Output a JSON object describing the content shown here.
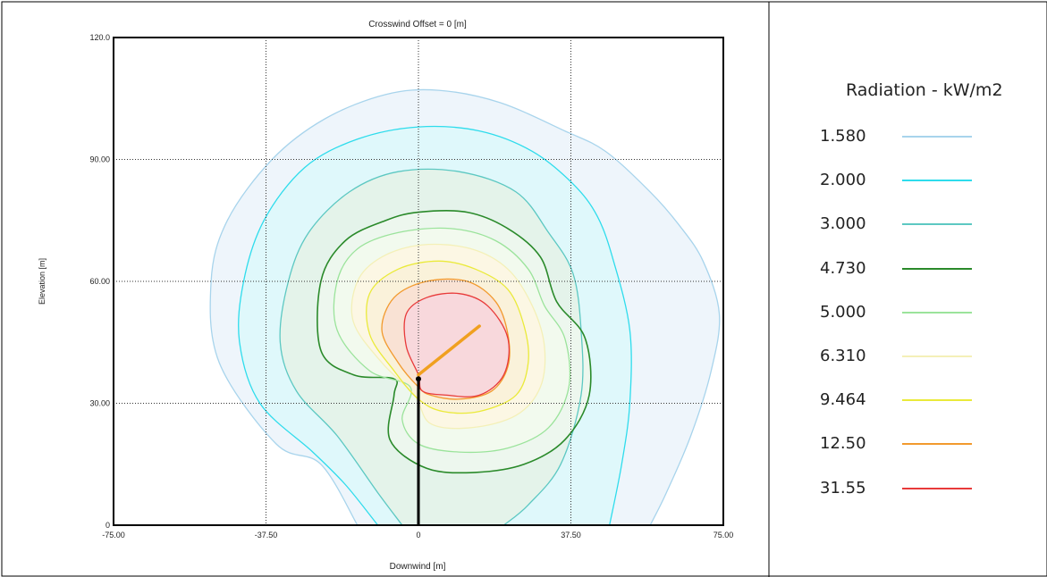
{
  "chart_data": {
    "type": "contour",
    "title": "Crosswind Offset = 0 [m]",
    "xlabel": "Downwind [m]",
    "ylabel": "Elevation [m]",
    "xlim": [
      -75,
      75
    ],
    "ylim": [
      0,
      120
    ],
    "x_ticks": [
      -75,
      -37.5,
      0,
      37.5,
      75
    ],
    "x_tick_labels": [
      "-75.00",
      "-37.50",
      "0",
      "37.50",
      "75.00"
    ],
    "y_ticks": [
      0,
      30,
      60,
      90,
      120
    ],
    "y_tick_labels": [
      "0",
      "30.00",
      "60.00",
      "90.00",
      "120.0"
    ],
    "grid": true,
    "legend_title": "Radiation - kW/m2",
    "levels": [
      {
        "label": "1.580",
        "value": 1.58,
        "color": "#a8d4ec",
        "fill": "#eef5fb",
        "points": [
          [
            -15,
            0
          ],
          [
            -24,
            15
          ],
          [
            -35,
            20
          ],
          [
            -49,
            40
          ],
          [
            -51,
            60
          ],
          [
            -47,
            75
          ],
          [
            -36,
            90
          ],
          [
            -23,
            100
          ],
          [
            -8,
            106
          ],
          [
            5,
            107
          ],
          [
            20,
            104
          ],
          [
            36,
            97
          ],
          [
            46,
            92
          ],
          [
            57,
            82
          ],
          [
            64,
            74
          ],
          [
            70,
            65
          ],
          [
            74,
            52
          ],
          [
            72,
            38
          ],
          [
            67,
            22
          ],
          [
            61,
            8
          ],
          [
            57,
            0
          ]
        ]
      },
      {
        "label": "2.000",
        "value": 2.0,
        "color": "#2edcec",
        "fill": "#dff8fb",
        "points": [
          [
            -10,
            0
          ],
          [
            -18,
            10
          ],
          [
            -26,
            18
          ],
          [
            -39,
            30
          ],
          [
            -44,
            45
          ],
          [
            -43,
            60
          ],
          [
            -38,
            75
          ],
          [
            -28,
            88
          ],
          [
            -15,
            95
          ],
          [
            0,
            98
          ],
          [
            15,
            97
          ],
          [
            28,
            92
          ],
          [
            38,
            84
          ],
          [
            44,
            76
          ],
          [
            48,
            65
          ],
          [
            52,
            48
          ],
          [
            52,
            30
          ],
          [
            50,
            15
          ],
          [
            47,
            0
          ]
        ]
      },
      {
        "label": "3.000",
        "value": 3.0,
        "color": "#5cc8c2",
        "fill": "#e4f3ea",
        "points": [
          [
            -4,
            0
          ],
          [
            -10,
            8
          ],
          [
            -20,
            22
          ],
          [
            -30,
            33
          ],
          [
            -34,
            45
          ],
          [
            -32,
            60
          ],
          [
            -27,
            72
          ],
          [
            -17,
            82
          ],
          [
            -5,
            87
          ],
          [
            10,
            87
          ],
          [
            24,
            82
          ],
          [
            32,
            72
          ],
          [
            38,
            62
          ],
          [
            40,
            48
          ],
          [
            40,
            32
          ],
          [
            35,
            15
          ],
          [
            27,
            5
          ],
          [
            21,
            0
          ]
        ]
      },
      {
        "label": "4.730",
        "value": 4.73,
        "color": "#2a8a2a",
        "fill": "#edf7ee",
        "points": [
          [
            -6,
            36
          ],
          [
            -16,
            37
          ],
          [
            -24,
            43
          ],
          [
            -24,
            60
          ],
          [
            -18,
            70
          ],
          [
            -8,
            75
          ],
          [
            0,
            77
          ],
          [
            12,
            77
          ],
          [
            22,
            73
          ],
          [
            30,
            66
          ],
          [
            34,
            55
          ],
          [
            41,
            46
          ],
          [
            42,
            32
          ],
          [
            36,
            21
          ],
          [
            26,
            15
          ],
          [
            14,
            13
          ],
          [
            2,
            14
          ],
          [
            -7,
            21
          ],
          [
            -6,
            32
          ]
        ]
      },
      {
        "label": "5.000",
        "value": 5.0,
        "color": "#9be39b",
        "fill": "#f2faee",
        "points": [
          [
            -2,
            34
          ],
          [
            -12,
            38
          ],
          [
            -20,
            48
          ],
          [
            -20,
            60
          ],
          [
            -15,
            68
          ],
          [
            -5,
            72
          ],
          [
            8,
            73
          ],
          [
            19,
            70
          ],
          [
            27,
            63
          ],
          [
            31,
            54
          ],
          [
            36,
            46
          ],
          [
            37,
            34
          ],
          [
            32,
            24
          ],
          [
            22,
            19
          ],
          [
            10,
            18
          ],
          [
            0,
            20
          ],
          [
            -4,
            26
          ]
        ]
      },
      {
        "label": "6.310",
        "value": 6.31,
        "color": "#f4f0b8",
        "fill": "#fcf7e4",
        "points": [
          [
            -1,
            32
          ],
          [
            -9,
            40
          ],
          [
            -16,
            50
          ],
          [
            -15,
            60
          ],
          [
            -9,
            66
          ],
          [
            1,
            69
          ],
          [
            13,
            68
          ],
          [
            22,
            63
          ],
          [
            28,
            54
          ],
          [
            31,
            44
          ],
          [
            30,
            34
          ],
          [
            24,
            27
          ],
          [
            13,
            24
          ],
          [
            3,
            25
          ]
        ]
      },
      {
        "label": "9.464",
        "value": 9.464,
        "color": "#eaea3a",
        "fill": "#faf2da",
        "points": [
          [
            0,
            31
          ],
          [
            -6,
            38
          ],
          [
            -12,
            47
          ],
          [
            -12,
            57
          ],
          [
            -5,
            63
          ],
          [
            5,
            65
          ],
          [
            14,
            63
          ],
          [
            22,
            58
          ],
          [
            26,
            49
          ],
          [
            27,
            40
          ],
          [
            24,
            32
          ],
          [
            15,
            28
          ],
          [
            6,
            28
          ]
        ]
      },
      {
        "label": "12.50",
        "value": 12.5,
        "color": "#f29a2e",
        "fill": "#f9e2d4",
        "points": [
          [
            0,
            34
          ],
          [
            -5,
            40
          ],
          [
            -9,
            48
          ],
          [
            -6,
            56
          ],
          [
            2,
            60
          ],
          [
            12,
            60
          ],
          [
            19,
            55
          ],
          [
            22,
            47
          ],
          [
            22,
            39
          ],
          [
            18,
            33
          ],
          [
            10,
            31
          ],
          [
            3,
            32
          ]
        ]
      },
      {
        "label": "31.55",
        "value": 31.55,
        "color": "#e83a3a",
        "fill": "#f8d8dc",
        "points": [
          [
            0,
            37
          ],
          [
            -3,
            44
          ],
          [
            -3,
            52
          ],
          [
            2,
            56
          ],
          [
            10,
            57
          ],
          [
            17,
            54
          ],
          [
            22,
            46
          ],
          [
            21,
            37
          ],
          [
            15,
            32
          ],
          [
            7,
            32
          ],
          [
            1,
            33
          ]
        ]
      }
    ],
    "flare_stack": {
      "base": [
        0,
        0
      ],
      "tip": [
        0,
        36
      ]
    },
    "flame": {
      "start": [
        0,
        37
      ],
      "end": [
        15,
        49
      ],
      "color": "#f0a020"
    }
  }
}
